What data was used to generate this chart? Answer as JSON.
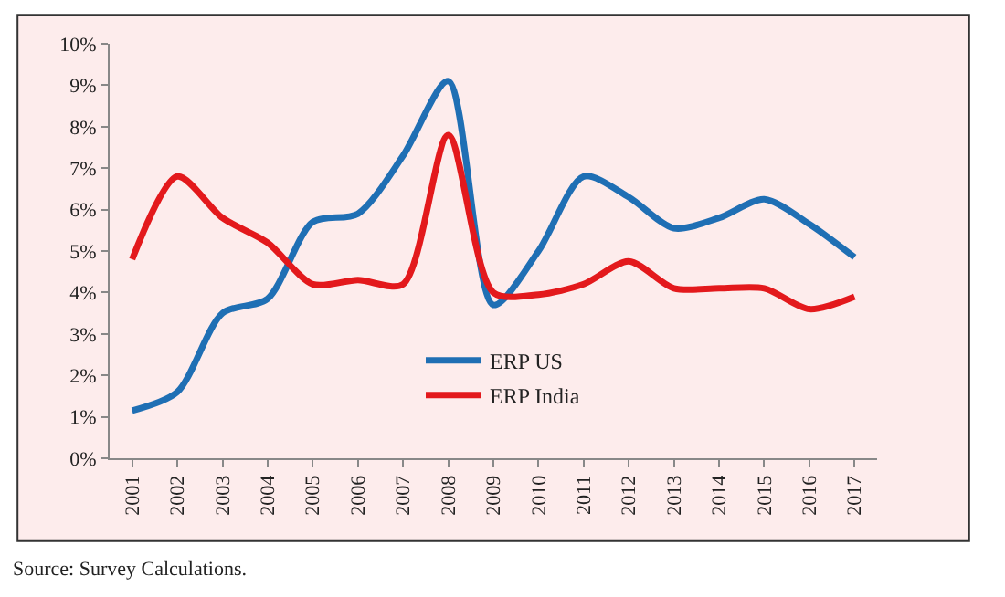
{
  "chart_data": {
    "type": "line",
    "categories": [
      "2001",
      "2002",
      "2003",
      "2004",
      "2005",
      "2006",
      "2007",
      "2008",
      "2009",
      "2010",
      "2011",
      "2012",
      "2013",
      "2014",
      "2015",
      "2016",
      "2017"
    ],
    "series": [
      {
        "name": "ERP US",
        "color": "#1f6fb4",
        "values": [
          1.15,
          1.6,
          3.5,
          3.85,
          5.7,
          5.9,
          7.3,
          9.1,
          3.7,
          5.0,
          6.8,
          6.3,
          5.55,
          5.8,
          6.25,
          5.65,
          4.85
        ]
      },
      {
        "name": "ERP India",
        "color": "#e3191c",
        "values": [
          4.8,
          6.8,
          5.8,
          5.2,
          4.2,
          4.3,
          4.2,
          7.8,
          4.0,
          3.95,
          4.2,
          4.75,
          4.1,
          4.1,
          4.1,
          3.6,
          3.9
        ]
      }
    ],
    "ylim": [
      0,
      10
    ],
    "yticks": [
      {
        "value": 0,
        "label": "0%"
      },
      {
        "value": 1,
        "label": "1%"
      },
      {
        "value": 2,
        "label": "2%"
      },
      {
        "value": 3,
        "label": "3%"
      },
      {
        "value": 4,
        "label": "4%"
      },
      {
        "value": 5,
        "label": "5%"
      },
      {
        "value": 6,
        "label": "6%"
      },
      {
        "value": 7,
        "label": "7%"
      },
      {
        "value": 8,
        "label": "8%"
      },
      {
        "value": 9,
        "label": "9%"
      },
      {
        "value": 10,
        "label": "10%"
      }
    ],
    "grid": false,
    "legend": "bottom",
    "marker": "none",
    "line_style": "solid",
    "annotations": [
      "Source: Survey Calculations."
    ]
  }
}
